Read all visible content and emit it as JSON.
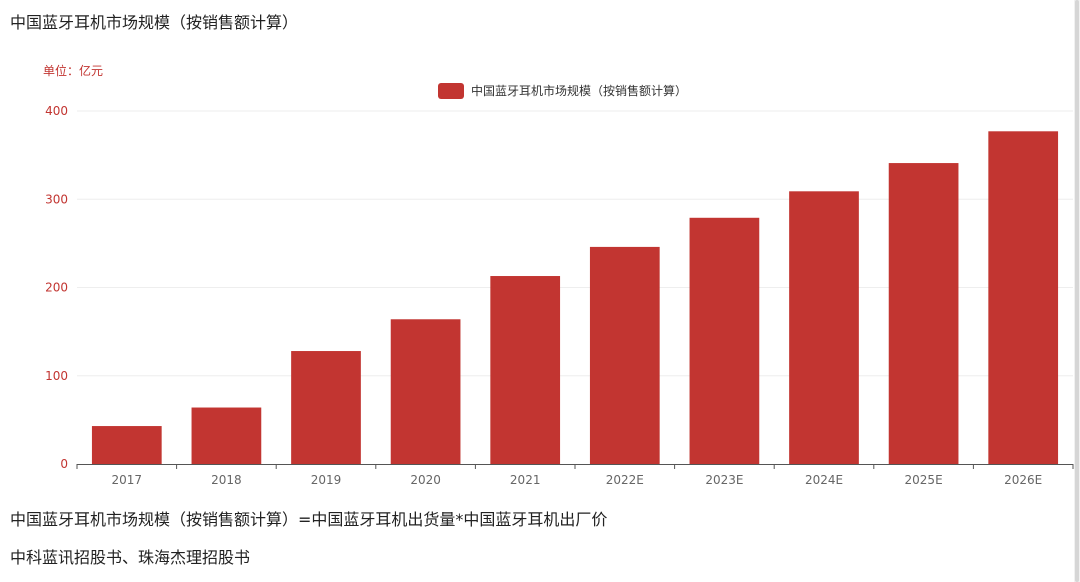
{
  "page": {
    "title": "中国蓝牙耳机市场规模（按销售额计算）",
    "note": "中国蓝牙耳机市场规模（按销售额计算）=中国蓝牙耳机出货量*中国蓝牙耳机出厂价",
    "source": "中科蓝讯招股书、珠海杰理招股书"
  },
  "chart_data": {
    "type": "bar",
    "title": "",
    "unit_label": "单位：亿元",
    "legend": {
      "label": "中国蓝牙耳机市场规模（按销售额计算）",
      "position": "top-center"
    },
    "categories": [
      "2017",
      "2018",
      "2019",
      "2020",
      "2021",
      "2022E",
      "2023E",
      "2024E",
      "2025E",
      "2026E"
    ],
    "series": [
      {
        "name": "中国蓝牙耳机市场规模（按销售额计算）",
        "values": [
          43,
          64,
          128,
          164,
          213,
          246,
          279,
          309,
          341,
          377
        ]
      }
    ],
    "ylim": [
      0,
      400
    ],
    "yticks": [
      0,
      100,
      200,
      300,
      400
    ],
    "grid": true,
    "colors": {
      "bar": "#c23531",
      "axis_text": "#c23531",
      "grid": "#eeeeee",
      "axis": "#555555",
      "xtick_text": "#666666"
    }
  }
}
